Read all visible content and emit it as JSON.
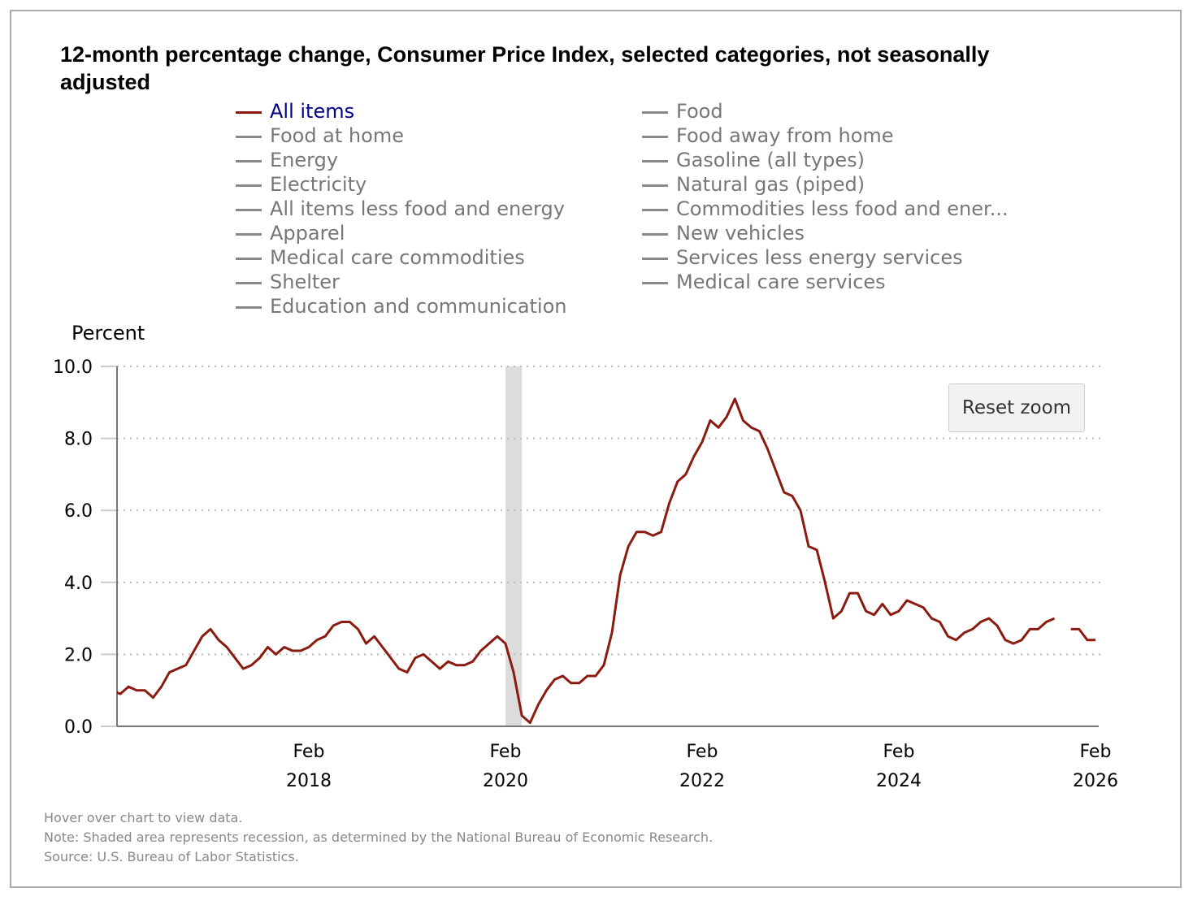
{
  "chart_data": {
    "type": "line",
    "title": "12-month percentage change, Consumer Price Index, selected categories, not seasonally adjusted",
    "ylabel": "Percent",
    "xlabel": "",
    "ylim": [
      0,
      10
    ],
    "yticks": [
      "0.0",
      "2.0",
      "4.0",
      "6.0",
      "8.0",
      "10.0"
    ],
    "xticks": [
      {
        "month": "Feb",
        "year": "2018",
        "date": "2018-02"
      },
      {
        "month": "Feb",
        "year": "2020",
        "date": "2020-02"
      },
      {
        "month": "Feb",
        "year": "2022",
        "date": "2022-02"
      },
      {
        "month": "Feb",
        "year": "2024",
        "date": "2024-02"
      },
      {
        "month": "Feb",
        "year": "2026",
        "date": "2026-02"
      }
    ],
    "grid": "horizontal dotted",
    "legend_placement": "top",
    "recession": {
      "start": "2020-02",
      "end": "2020-04"
    },
    "series": [
      {
        "name": "All items",
        "color": "#8b1a10",
        "start": "2016-02",
        "values": [
          1.0,
          0.9,
          1.1,
          1.0,
          1.0,
          0.8,
          1.1,
          1.5,
          1.6,
          1.7,
          2.1,
          2.5,
          2.7,
          2.4,
          2.2,
          1.9,
          1.6,
          1.7,
          1.9,
          2.2,
          2.0,
          2.2,
          2.1,
          2.1,
          2.2,
          2.4,
          2.5,
          2.8,
          2.9,
          2.9,
          2.7,
          2.3,
          2.5,
          2.2,
          1.9,
          1.6,
          1.5,
          1.9,
          2.0,
          1.8,
          1.6,
          1.8,
          1.7,
          1.7,
          1.8,
          2.1,
          2.3,
          2.5,
          2.3,
          1.5,
          0.3,
          0.1,
          0.6,
          1.0,
          1.3,
          1.4,
          1.2,
          1.2,
          1.4,
          1.4,
          1.7,
          2.6,
          4.2,
          5.0,
          5.4,
          5.4,
          5.3,
          5.4,
          6.2,
          6.8,
          7.0,
          7.5,
          7.9,
          8.5,
          8.3,
          8.6,
          9.1,
          8.5,
          8.3,
          8.2,
          7.7,
          7.1,
          6.5,
          6.4,
          6.0,
          5.0,
          4.9,
          4.0,
          3.0,
          3.2,
          3.7,
          3.7,
          3.2,
          3.1,
          3.4,
          3.1,
          3.2,
          3.5,
          3.4,
          3.3,
          3.0,
          2.9,
          2.5,
          2.4,
          2.6,
          2.7,
          2.9,
          3.0,
          2.8,
          2.4,
          2.3,
          2.4,
          2.7,
          2.7,
          2.9,
          3.0,
          null,
          2.7,
          2.7,
          2.4,
          2.4
        ]
      }
    ]
  },
  "legend": {
    "left": [
      "All items",
      "Food at home",
      "Energy",
      "Electricity",
      "All items less food and energy",
      "Apparel",
      "Medical care commodities",
      "Shelter",
      "Education and communication"
    ],
    "right": [
      "Food",
      "Food away from home",
      "Gasoline (all types)",
      "Natural gas (piped)",
      "Commodities less food and ener...",
      "New vehicles",
      "Services less energy services",
      "Medical care services"
    ],
    "active_color": "#00008b",
    "inactive_color": "#777777"
  },
  "reset_zoom_label": "Reset zoom",
  "footer": {
    "hover": "Hover over chart to view data.",
    "note": "Note: Shaded area represents recession, as determined by the National Bureau of Economic Research.",
    "source": "Source: U.S. Bureau of Labor Statistics."
  }
}
